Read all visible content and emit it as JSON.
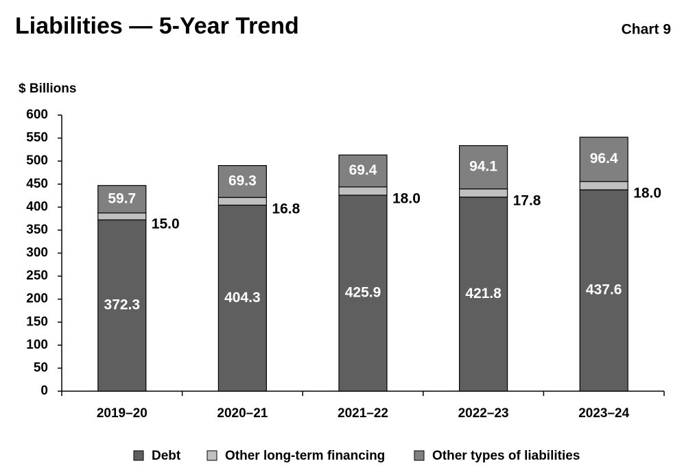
{
  "chart_data": {
    "type": "stacked_bar",
    "title": "Liabilities — 5-Year Trend",
    "subtitle": "Chart 9",
    "y_label": "$ Billions",
    "categories": [
      "2019–20",
      "2020–21",
      "2021–22",
      "2022–23",
      "2023–24"
    ],
    "series": [
      {
        "name": "Debt",
        "color": "#5f5f5f",
        "values": [
          372.3,
          404.3,
          425.9,
          421.8,
          437.6
        ],
        "value_labels": [
          "372.3",
          "404.3",
          "425.9",
          "421.8",
          "437.6"
        ]
      },
      {
        "name": "Other long-term financing",
        "color": "#c0c0c0",
        "values": [
          15.0,
          16.8,
          18.0,
          17.8,
          18.0
        ],
        "value_labels": [
          "15.0",
          "16.8",
          "18.0",
          "17.8",
          "18.0"
        ]
      },
      {
        "name": "Other types of liabilities",
        "color": "#808080",
        "values": [
          59.7,
          69.3,
          69.4,
          94.1,
          96.4
        ],
        "value_labels": [
          "59.7",
          "69.3",
          "69.4",
          "94.1",
          "96.4"
        ]
      }
    ],
    "ylim": [
      0,
      600
    ],
    "yticks": [
      0,
      50,
      100,
      150,
      200,
      250,
      300,
      350,
      400,
      450,
      500,
      550,
      600
    ]
  }
}
